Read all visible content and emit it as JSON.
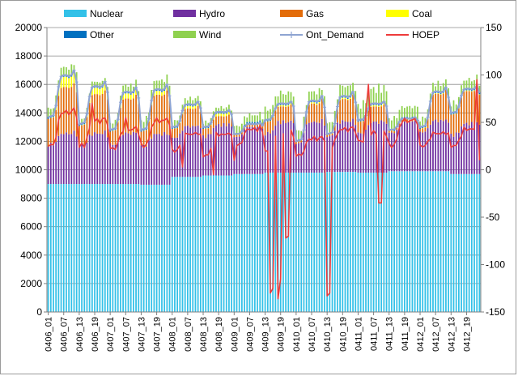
{
  "chart_data": {
    "type": "bar+line",
    "title": "",
    "xlabel": "",
    "ylabel_left": "",
    "ylabel_right": "",
    "ylim_left": [
      0,
      20000
    ],
    "ylim_right": [
      -150,
      150
    ],
    "yticks_left": [
      "0",
      "2000",
      "4000",
      "6000",
      "8000",
      "10000",
      "12000",
      "14000",
      "16000",
      "18000",
      "20000"
    ],
    "yticks_right": [
      "-150",
      "-100",
      "-50",
      "0",
      "50",
      "100",
      "150"
    ],
    "grid": "horizontal",
    "legend_position": "top",
    "x_tick_labels": [
      "0406_01",
      "0406_07",
      "0406_13",
      "0406_19",
      "0407_01",
      "0407_07",
      "0407_13",
      "0407_19",
      "0408_01",
      "0408_07",
      "0408_13",
      "0408_19",
      "0409_01",
      "0409_07",
      "0409_13",
      "0409_19",
      "0410_01",
      "0410_07",
      "0410_13",
      "0410_19",
      "0411_01",
      "0411_07",
      "0411_13",
      "0411_19",
      "0412_01",
      "0412_07",
      "0412_13",
      "0412_19"
    ],
    "hours": 168,
    "stack_series": [
      {
        "name": "Nuclear",
        "color": "#33c1e8"
      },
      {
        "name": "Hydro",
        "color": "#7030a0"
      },
      {
        "name": "Gas",
        "color": "#e36c09"
      },
      {
        "name": "Coal",
        "color": "#ffff00"
      },
      {
        "name": "Other",
        "color": "#0070c0"
      },
      {
        "name": "Wind",
        "color": "#8fd14f"
      }
    ],
    "line_series": [
      {
        "name": "Ont_Demand",
        "color": "#8ea4d2",
        "axis": "left"
      },
      {
        "name": "HOEP",
        "color": "#ee3b3b",
        "axis": "right"
      }
    ],
    "daily_nuclear": [
      9000,
      9000,
      9000,
      8950,
      9500,
      9600,
      9700,
      9800,
      9800,
      9850,
      9800,
      9900,
      9900,
      9700
    ],
    "daily_peak": [
      17000,
      16200,
      15800,
      16000,
      14800,
      14200,
      13300,
      14800,
      15200,
      15500,
      14800,
      13700,
      15800,
      15900
    ],
    "daily_trough": [
      13700,
      13200,
      12800,
      12800,
      13000,
      13000,
      12500,
      13500,
      12000,
      12500,
      13500,
      12800,
      13000,
      14000
    ],
    "daily_wind": [
      700,
      400,
      600,
      800,
      500,
      400,
      600,
      900,
      800,
      900,
      1300,
      900,
      700,
      800
    ],
    "daily_coal": [
      800,
      500,
      400,
      300,
      200,
      200,
      100,
      100,
      100,
      100,
      100,
      50,
      50,
      50
    ],
    "hoep_base": [
      25,
      25,
      22,
      25,
      20,
      15,
      25,
      20,
      15,
      25,
      30,
      25,
      25,
      25
    ],
    "hoep_peak": [
      65,
      55,
      45,
      55,
      40,
      40,
      45,
      40,
      35,
      45,
      40,
      55,
      40,
      45
    ],
    "hoep_spikes": [
      {
        "hour": 17,
        "value": 70
      },
      {
        "hour": 30,
        "value": 55
      },
      {
        "hour": 52,
        "value": 3
      },
      {
        "hour": 64,
        "value": -5
      },
      {
        "hour": 72,
        "value": 10
      },
      {
        "hour": 86,
        "value": -130
      },
      {
        "hour": 87,
        "value": -125
      },
      {
        "hour": 89,
        "value": -136
      },
      {
        "hour": 90,
        "value": -115
      },
      {
        "hour": 92,
        "value": -72
      },
      {
        "hour": 93,
        "value": -70
      },
      {
        "hour": 108,
        "value": -133
      },
      {
        "hour": 109,
        "value": -130
      },
      {
        "hour": 123,
        "value": 60
      },
      {
        "hour": 124,
        "value": 90
      },
      {
        "hour": 128,
        "value": -35
      },
      {
        "hour": 129,
        "value": -35
      },
      {
        "hour": 166,
        "value": 95
      },
      {
        "hour": 167,
        "value": 10
      }
    ]
  }
}
